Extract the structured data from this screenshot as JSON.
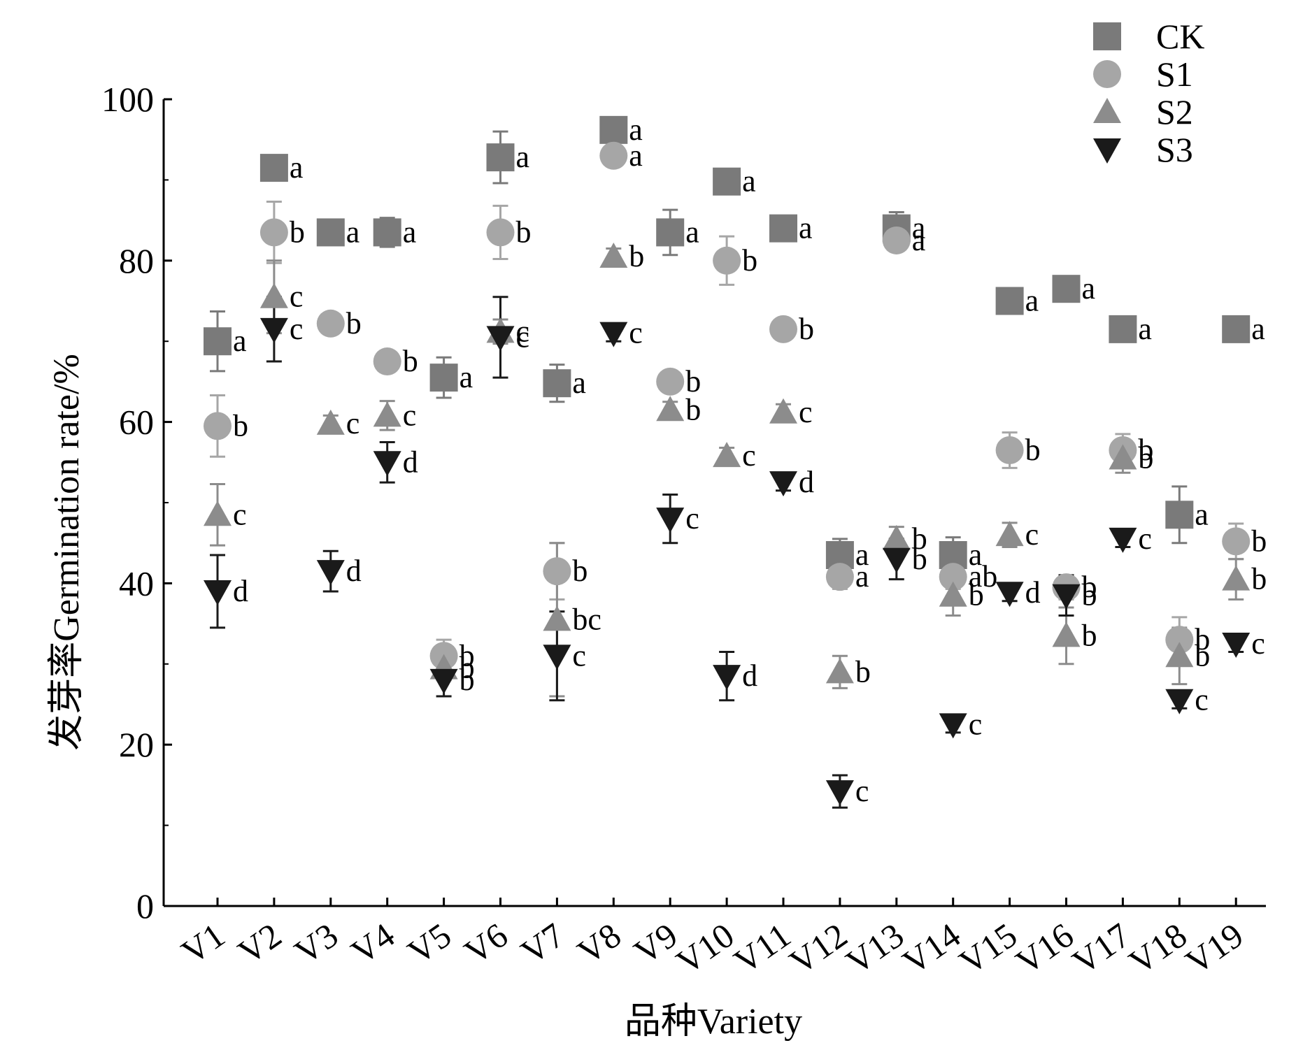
{
  "chart_data": {
    "type": "scatter",
    "ylabel": "发芽率Germination rate/%",
    "xlabel": "品种Variety",
    "ylim": [
      0,
      100
    ],
    "yticks": [
      0,
      20,
      40,
      60,
      80,
      100
    ],
    "grid": false,
    "legend_position": "top-right",
    "categories": [
      "V1",
      "V2",
      "V3",
      "V4",
      "V5",
      "V6",
      "V7",
      "V8",
      "V9",
      "V10",
      "V11",
      "V12",
      "V13",
      "V14",
      "V15",
      "V16",
      "V17",
      "V18",
      "V19"
    ],
    "series": [
      {
        "name": "CK",
        "marker": "square",
        "color": "#7a7a7a",
        "values": [
          70,
          91.5,
          83.5,
          83.5,
          65.5,
          92.8,
          64.8,
          96.2,
          83.5,
          89.8,
          84,
          43.5,
          84,
          43.5,
          75,
          76.5,
          71.5,
          48.5,
          71.5
        ],
        "errors": [
          3.7,
          1.5,
          0.8,
          1.8,
          2.5,
          3.2,
          2.3,
          1.0,
          2.8,
          1.0,
          1.0,
          2.0,
          2.0,
          2.2,
          0.8,
          0.8,
          0.8,
          3.5,
          0.8
        ],
        "letters": [
          "a",
          "a",
          "a",
          "a",
          "a",
          "a",
          "a",
          "a",
          "a",
          "a",
          "a",
          "a",
          "a",
          "a",
          "a",
          "a",
          "a",
          "a",
          "a"
        ]
      },
      {
        "name": "S1",
        "marker": "circle",
        "color": "#a6a6a6",
        "values": [
          59.5,
          83.5,
          72.2,
          67.5,
          31,
          83.5,
          41.5,
          93,
          65,
          80,
          71.5,
          40.8,
          82.5,
          40.8,
          56.5,
          39.5,
          56.5,
          33,
          45.2
        ],
        "errors": [
          3.8,
          3.8,
          0.8,
          0.8,
          2.0,
          3.3,
          3.5,
          1.0,
          1.0,
          3.0,
          1.0,
          1.5,
          1.0,
          1.5,
          2.2,
          1.5,
          2.0,
          2.8,
          2.2
        ],
        "letters": [
          "b",
          "b",
          "b",
          "b",
          "b",
          "b",
          "b",
          "a",
          "b",
          "b",
          "b",
          "a",
          "a",
          "ab",
          "b",
          "b",
          "b",
          "b",
          "b"
        ]
      },
      {
        "name": "S2",
        "marker": "triangle-up",
        "color": "#8c8c8c",
        "values": [
          48.5,
          75.5,
          59.8,
          60.8,
          29.5,
          71.2,
          35.5,
          80.5,
          61.5,
          55.8,
          61.2,
          29,
          45.5,
          38.5,
          46,
          33.5,
          55.5,
          31,
          40.5
        ],
        "errors": [
          3.8,
          4.5,
          1.0,
          1.8,
          1.5,
          1.5,
          9.5,
          1.0,
          1.0,
          1.0,
          1.0,
          2.0,
          1.5,
          2.5,
          1.5,
          3.5,
          1.8,
          3.5,
          2.5
        ],
        "letters": [
          "c",
          "c",
          "c",
          "c",
          "b",
          "c",
          "bc",
          "b",
          "b",
          "c",
          "c",
          "b",
          "b",
          "b",
          "c",
          "b",
          "b",
          "b",
          "b"
        ]
      },
      {
        "name": "S3",
        "marker": "triangle-down",
        "color": "#1a1a1a",
        "values": [
          39,
          71.5,
          41.5,
          55,
          28,
          70.5,
          31,
          71,
          48,
          28.5,
          52.5,
          14.2,
          43,
          22.5,
          38.8,
          38.5,
          45.5,
          25.5,
          32.5
        ],
        "errors": [
          4.5,
          4.0,
          2.5,
          2.5,
          2.0,
          5.0,
          5.5,
          1.0,
          3.0,
          3.0,
          1.0,
          2.0,
          2.5,
          1.0,
          1.0,
          2.5,
          1.0,
          1.0,
          1.0
        ],
        "letters": [
          "d",
          "c",
          "d",
          "d",
          "b",
          "c",
          "c",
          "c",
          "c",
          "d",
          "d",
          "c",
          "b",
          "c",
          "d",
          "b",
          "c",
          "c",
          "c"
        ]
      }
    ]
  }
}
